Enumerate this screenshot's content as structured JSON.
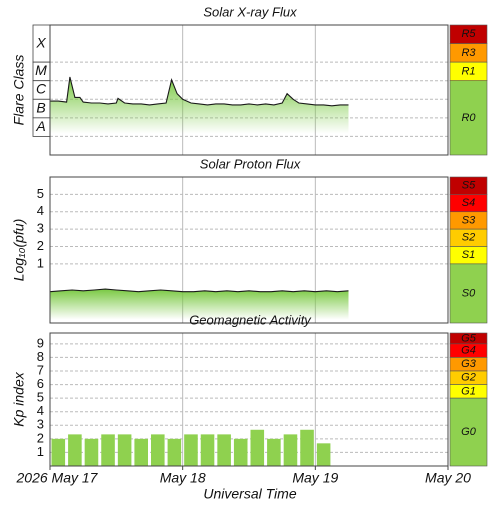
{
  "chart_data": [
    {
      "type": "line",
      "title": "Solar X-ray Flux",
      "ylabel": "Flare Class",
      "color": "#1a1a1a",
      "fill": "#7ac943",
      "xlim": [
        0,
        72
      ],
      "ylim": [
        -9,
        -2
      ],
      "yticks": [
        {
          "value": -4,
          "label": "X"
        },
        {
          "value": -5,
          "label": "M"
        },
        {
          "value": -6,
          "label": "C"
        },
        {
          "value": -7,
          "label": "B"
        },
        {
          "value": -8,
          "label": "A"
        }
      ],
      "x": [
        0,
        1.5,
        3,
        3.6,
        4.5,
        5.4,
        6,
        7.5,
        9,
        10.5,
        12,
        12.3,
        13.5,
        15,
        16.5,
        18,
        19.5,
        21,
        22,
        23,
        24,
        25.5,
        27,
        28.5,
        30,
        31.5,
        33,
        34.5,
        36,
        37.5,
        39,
        40.5,
        42,
        42.9,
        44,
        45,
        46.5,
        48,
        49.5,
        51,
        52.5,
        54
      ],
      "values": [
        -6.1,
        -6.1,
        -6.15,
        -4.8,
        -5.9,
        -5.9,
        -6.15,
        -6.2,
        -6.2,
        -6.25,
        -6.2,
        -5.95,
        -6.2,
        -6.25,
        -6.25,
        -6.3,
        -6.25,
        -6.2,
        -4.95,
        -5.7,
        -6.0,
        -6.2,
        -6.25,
        -6.3,
        -6.25,
        -6.25,
        -6.3,
        -6.3,
        -6.25,
        -6.3,
        -6.25,
        -6.3,
        -6.2,
        -5.7,
        -6.0,
        -6.2,
        -6.25,
        -6.3,
        -6.3,
        -6.35,
        -6.3,
        -6.3
      ],
      "scale": [
        {
          "label": "R5",
          "color": "#c00000",
          "range": [
            -3,
            -2
          ]
        },
        {
          "label": "R3",
          "color": "#ff9900",
          "range": [
            -4,
            -3
          ]
        },
        {
          "label": "R1",
          "color": "#ffff00",
          "range": [
            -5,
            -4
          ]
        },
        {
          "label": "R0",
          "color": "#8fd14f",
          "range": [
            -9,
            -5
          ]
        }
      ]
    },
    {
      "type": "line",
      "title": "Solar Proton Flux",
      "ylabel": "Log₁₀(pfu)",
      "color": "#1a1a1a",
      "fill": "#7ac943",
      "xlim": [
        0,
        72
      ],
      "ylim": [
        -2.4,
        6
      ],
      "yticks": [
        1,
        2,
        3,
        4,
        5
      ],
      "x": [
        0,
        2,
        4,
        6,
        8,
        10,
        12,
        14,
        16,
        18,
        20,
        22,
        24,
        26,
        28,
        30,
        32,
        34,
        36,
        38,
        40,
        42,
        44,
        46,
        48,
        50,
        52,
        54
      ],
      "values": [
        -0.6,
        -0.55,
        -0.5,
        -0.55,
        -0.5,
        -0.45,
        -0.5,
        -0.55,
        -0.6,
        -0.55,
        -0.5,
        -0.55,
        -0.6,
        -0.6,
        -0.55,
        -0.6,
        -0.55,
        -0.6,
        -0.55,
        -0.6,
        -0.6,
        -0.55,
        -0.6,
        -0.55,
        -0.6,
        -0.55,
        -0.6,
        -0.55
      ],
      "scale": [
        {
          "label": "S5",
          "color": "#c00000",
          "range": [
            5,
            6
          ]
        },
        {
          "label": "S4",
          "color": "#ff0000",
          "range": [
            4,
            5
          ]
        },
        {
          "label": "S3",
          "color": "#ff9900",
          "range": [
            3,
            4
          ]
        },
        {
          "label": "S2",
          "color": "#ffcc00",
          "range": [
            2,
            3
          ]
        },
        {
          "label": "S1",
          "color": "#ffff00",
          "range": [
            1,
            2
          ]
        },
        {
          "label": "S0",
          "color": "#8fd14f",
          "range": [
            -2.4,
            1
          ]
        }
      ]
    },
    {
      "type": "bar",
      "title": "Geomagnetic Activity",
      "ylabel": "Kp index",
      "xlabel": "Universal Time",
      "color": "#8fd14f",
      "xlim": [
        0,
        72
      ],
      "ylim": [
        0,
        9.8
      ],
      "yticks": [
        1,
        2,
        3,
        4,
        5,
        6,
        7,
        8,
        9
      ],
      "xticks": [
        {
          "value": 0,
          "label": "2026 May 17"
        },
        {
          "value": 24,
          "label": "May 18"
        },
        {
          "value": 48,
          "label": "May 19"
        },
        {
          "value": 72,
          "label": "May 20"
        }
      ],
      "x": [
        0,
        3,
        6,
        9,
        12,
        15,
        18,
        21,
        24,
        27,
        30,
        33,
        36,
        39,
        42,
        45,
        48
      ],
      "values": [
        2,
        2.33,
        2,
        2.33,
        2.33,
        2,
        2.33,
        2,
        2.33,
        2.33,
        2.33,
        2,
        2.67,
        2,
        2.33,
        2.67,
        1.67
      ],
      "scale": [
        {
          "label": "G5",
          "color": "#c00000",
          "range": [
            9,
            9.8
          ]
        },
        {
          "label": "G4",
          "color": "#ff0000",
          "range": [
            8,
            9
          ]
        },
        {
          "label": "G3",
          "color": "#ff9900",
          "range": [
            7,
            8
          ]
        },
        {
          "label": "G2",
          "color": "#ffcc00",
          "range": [
            6,
            7
          ]
        },
        {
          "label": "G1",
          "color": "#ffff00",
          "range": [
            5,
            6
          ]
        },
        {
          "label": "G0",
          "color": "#8fd14f",
          "range": [
            0,
            5
          ]
        }
      ]
    }
  ]
}
